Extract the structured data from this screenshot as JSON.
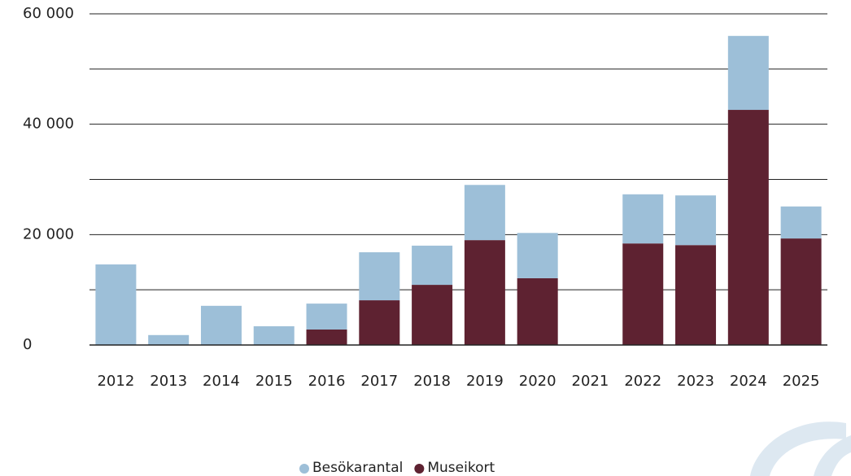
{
  "chart_data": {
    "type": "stacked-bar",
    "categories": [
      "2012",
      "2013",
      "2014",
      "2015",
      "2016",
      "2017",
      "2018",
      "2019",
      "2020",
      "2021",
      "2022",
      "2023",
      "2024",
      "2025"
    ],
    "series": [
      {
        "name": "Besökarantal",
        "color": "#9dbfd8",
        "values": [
          14600,
          1800,
          7100,
          3400,
          4700,
          8700,
          7100,
          10000,
          8200,
          null,
          8900,
          9000,
          13400,
          5800
        ]
      },
      {
        "name": "Museikort",
        "color": "#5e2231",
        "values": [
          0,
          0,
          0,
          0,
          2800,
          8100,
          10900,
          19000,
          12100,
          null,
          18400,
          18100,
          42600,
          19300
        ]
      }
    ],
    "ylim": [
      0,
      60000
    ],
    "yticks": [
      0,
      {
        "value": 20000,
        "label": "20 000"
      },
      {
        "value": 40000,
        "label": "40 000"
      },
      {
        "value": 60000,
        "label": "60 000"
      }
    ],
    "minor_yticks": [
      10000,
      30000,
      50000
    ],
    "grid": true,
    "legend": "bottom"
  }
}
